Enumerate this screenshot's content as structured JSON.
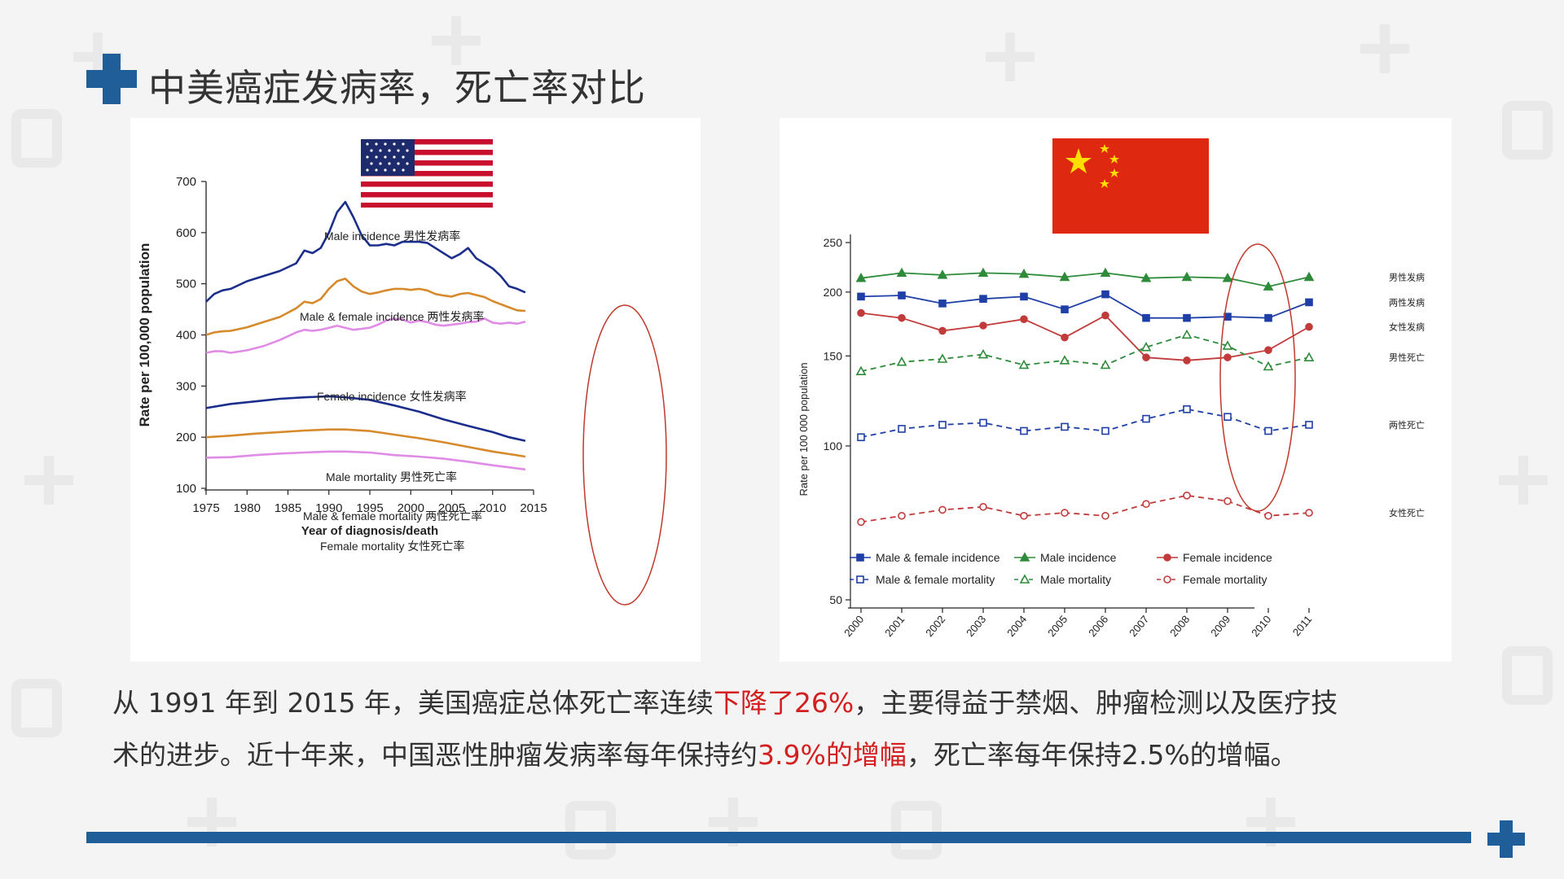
{
  "title": "中美癌症发病率，死亡率对比",
  "body": {
    "l1_a": "从 1991 年到 2015 年，美国癌症总体死亡率连续",
    "l1_hl": "下降了26%",
    "l1_b": "，主要得益于禁烟、肿瘤检测以及医疗技",
    "l2_a": "术的进步。近十年来，中国恶性肿瘤发病率每年保持约",
    "l2_hl": "3.9%的增幅",
    "l2_b": "，死亡率每年保持2.5%的增幅。"
  },
  "colors": {
    "accent": "#1f5e98",
    "highlight": "#d31f1f"
  },
  "icons": [
    "plus-icon",
    "us-flag-icon",
    "china-flag-icon"
  ],
  "chart_data": [
    {
      "type": "line",
      "xlabel": "Year of diagnosis/death",
      "ylabel": "Rate per 100,000 population",
      "xlim": [
        1975,
        2015
      ],
      "ylim": [
        100,
        700
      ],
      "xticks": [
        "1975",
        "1980",
        "1985",
        "1990",
        "1995",
        "2000",
        "2005",
        "2010",
        "2015"
      ],
      "yticks": [
        "100",
        "200",
        "300",
        "400",
        "500",
        "600",
        "700"
      ],
      "series": [
        {
          "name": "Male incidence 男性发病率",
          "color": "#1c2e8c",
          "x": [
            1975,
            1976,
            1977,
            1978,
            1980,
            1982,
            1984,
            1986,
            1987,
            1988,
            1989,
            1990,
            1991,
            1992,
            1993,
            1994,
            1995,
            1996,
            1997,
            1998,
            1999,
            2000,
            2001,
            2002,
            2003,
            2004,
            2005,
            2006,
            2007,
            2008,
            2009,
            2010,
            2011,
            2012,
            2013,
            2014
          ],
          "y": [
            465,
            480,
            487,
            490,
            505,
            515,
            525,
            540,
            565,
            560,
            570,
            600,
            640,
            660,
            630,
            595,
            575,
            575,
            578,
            575,
            582,
            582,
            582,
            580,
            570,
            560,
            550,
            558,
            570,
            550,
            540,
            530,
            515,
            495,
            490,
            483
          ]
        },
        {
          "name": "Male & female incidence 两性发病率",
          "color": "#d68a2c",
          "x": [
            1975,
            1976,
            1977,
            1978,
            1980,
            1982,
            1984,
            1986,
            1987,
            1988,
            1989,
            1990,
            1991,
            1992,
            1993,
            1994,
            1995,
            1996,
            1997,
            1998,
            1999,
            2000,
            2001,
            2002,
            2003,
            2004,
            2005,
            2006,
            2007,
            2008,
            2009,
            2010,
            2011,
            2012,
            2013,
            2014
          ],
          "y": [
            400,
            405,
            407,
            408,
            415,
            425,
            435,
            452,
            465,
            462,
            470,
            490,
            505,
            510,
            495,
            485,
            480,
            483,
            487,
            490,
            490,
            488,
            490,
            487,
            480,
            477,
            475,
            480,
            482,
            478,
            474,
            466,
            460,
            454,
            448,
            447
          ]
        },
        {
          "name": "Female incidence 女性发病率",
          "color": "#e08be6",
          "x": [
            1975,
            1976,
            1977,
            1978,
            1980,
            1982,
            1984,
            1986,
            1987,
            1988,
            1989,
            1990,
            1991,
            1992,
            1993,
            1994,
            1995,
            1996,
            1997,
            1998,
            1999,
            2000,
            2001,
            2002,
            2003,
            2004,
            2005,
            2006,
            2007,
            2008,
            2009,
            2010,
            2011,
            2012,
            2013,
            2014
          ],
          "y": [
            365,
            368,
            368,
            365,
            370,
            378,
            390,
            405,
            410,
            408,
            410,
            414,
            418,
            414,
            410,
            412,
            414,
            420,
            428,
            432,
            430,
            424,
            428,
            425,
            420,
            418,
            420,
            422,
            425,
            426,
            432,
            424,
            422,
            424,
            422,
            426
          ]
        },
        {
          "name": "Male mortality 男性死亡率",
          "color": "#1c2e8c",
          "x": [
            1975,
            1978,
            1981,
            1984,
            1987,
            1990,
            1992,
            1995,
            1998,
            2001,
            2004,
            2007,
            2010,
            2012,
            2014
          ],
          "y": [
            257,
            265,
            270,
            275,
            278,
            280,
            278,
            273,
            262,
            250,
            235,
            222,
            210,
            200,
            193
          ]
        },
        {
          "name": "Male & female mortality 两性死亡率",
          "color": "#d68a2c",
          "x": [
            1975,
            1978,
            1981,
            1984,
            1987,
            1990,
            1992,
            1995,
            1998,
            2001,
            2004,
            2007,
            2010,
            2012,
            2014
          ],
          "y": [
            200,
            203,
            207,
            210,
            213,
            215,
            215,
            212,
            205,
            198,
            190,
            181,
            172,
            167,
            162
          ]
        },
        {
          "name": "Female mortality 女性死亡率",
          "color": "#e08be6",
          "x": [
            1975,
            1978,
            1981,
            1984,
            1987,
            1990,
            1992,
            1995,
            1998,
            2001,
            2004,
            2007,
            2010,
            2012,
            2014
          ],
          "y": [
            160,
            161,
            165,
            168,
            170,
            172,
            172,
            170,
            165,
            162,
            158,
            152,
            145,
            141,
            137
          ]
        }
      ]
    },
    {
      "type": "line",
      "scale": "log",
      "ylabel": "Rate per 100 000 population",
      "ylim": [
        50,
        250
      ],
      "yticks": [
        "50",
        "100",
        "150",
        "200",
        "250"
      ],
      "categories": [
        "2000",
        "2001",
        "2002",
        "2003",
        "2004",
        "2005",
        "2006",
        "2007",
        "2008",
        "2009",
        "2010",
        "2011"
      ],
      "series": [
        {
          "name": "Male incidence",
          "label": "男性发病",
          "color": "#2e8b3a",
          "dash": false,
          "marker": "triangle-filled",
          "values": [
            213,
            218,
            216,
            218,
            217,
            214,
            218,
            213,
            214,
            213,
            205,
            214
          ]
        },
        {
          "name": "Male & female incidence",
          "label": "两性发病",
          "color": "#1f3fa6",
          "dash": false,
          "marker": "square-filled",
          "values": [
            196,
            197,
            190,
            194,
            196,
            185,
            198,
            178,
            178,
            179,
            178,
            191
          ]
        },
        {
          "name": "Female incidence",
          "label": "女性发病",
          "color": "#c23b3b",
          "dash": false,
          "marker": "circle-filled",
          "values": [
            182,
            178,
            168,
            172,
            177,
            163,
            180,
            149,
            147,
            149,
            154,
            171
          ]
        },
        {
          "name": "Male mortality",
          "label": "男性死亡",
          "color": "#2e8b3a",
          "dash": true,
          "marker": "triangle-open",
          "values": [
            140,
            146,
            148,
            151,
            144,
            147,
            144,
            156,
            165,
            157,
            143,
            149
          ]
        },
        {
          "name": "Male & female mortality",
          "label": "两性死亡",
          "color": "#1f3fa6",
          "dash": true,
          "marker": "square-open",
          "values": [
            104,
            108,
            110,
            111,
            107,
            109,
            107,
            113,
            118,
            114,
            107,
            110
          ]
        },
        {
          "name": "Female mortality",
          "label": "女性死亡",
          "color": "#c23b3b",
          "dash": true,
          "marker": "circle-open",
          "values": [
            71,
            73,
            75,
            76,
            73,
            74,
            73,
            77,
            80,
            78,
            73,
            74
          ]
        }
      ]
    }
  ]
}
